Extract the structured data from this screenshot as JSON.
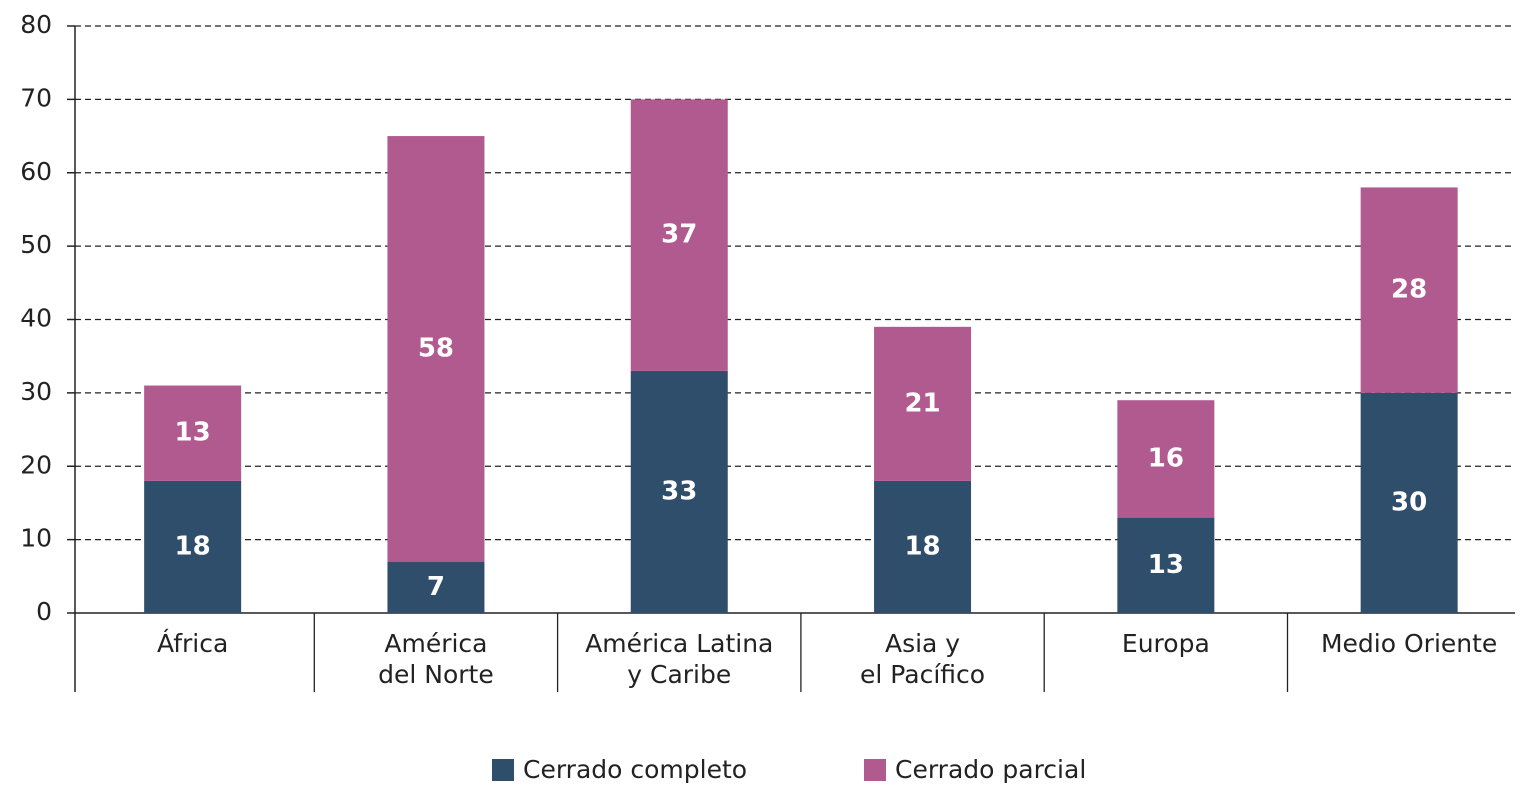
{
  "chart_data": {
    "type": "stacked_bar",
    "categories": [
      [
        "África"
      ],
      [
        "América",
        "del Norte"
      ],
      [
        "América Latina",
        "y Caribe"
      ],
      [
        "Asia y",
        "el Pacífico"
      ],
      [
        "Europa"
      ],
      [
        "Medio Oriente"
      ]
    ],
    "series": [
      {
        "name": "Cerrado completo",
        "color": "#2f4e6b",
        "values": [
          18,
          7,
          33,
          18,
          13,
          30
        ]
      },
      {
        "name": "Cerrado parcial",
        "color": "#b05a8f",
        "values": [
          13,
          58,
          37,
          21,
          16,
          28
        ]
      }
    ],
    "ylim": [
      0,
      80
    ],
    "yticks": [
      0,
      10,
      20,
      30,
      40,
      50,
      60,
      70,
      80
    ],
    "grid": true
  }
}
